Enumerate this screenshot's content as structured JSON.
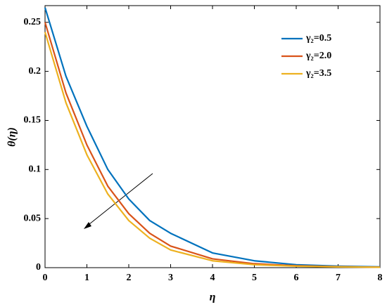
{
  "chart_data": {
    "type": "line",
    "x_label": "η",
    "y_label": "θ(η)",
    "x": [
      0,
      0.5,
      1,
      1.5,
      2,
      2.5,
      3,
      4,
      5,
      6,
      7,
      8
    ],
    "series": [
      {
        "name": "γ₂=0.5",
        "color": "#0072bd",
        "values": [
          0.265,
          0.195,
          0.144,
          0.1,
          0.07,
          0.048,
          0.035,
          0.015,
          0.007,
          0.003,
          0.0015,
          0.0008
        ]
      },
      {
        "name": "γ₂=2.0",
        "color": "#d95319",
        "values": [
          0.25,
          0.178,
          0.125,
          0.083,
          0.055,
          0.035,
          0.022,
          0.009,
          0.004,
          0.002,
          0.001,
          0.0005
        ]
      },
      {
        "name": "γ₂=3.5",
        "color": "#edb120",
        "values": [
          0.24,
          0.168,
          0.115,
          0.075,
          0.048,
          0.03,
          0.018,
          0.007,
          0.003,
          0.0015,
          0.0008,
          0.0004
        ]
      }
    ],
    "xlim": [
      0,
      8
    ],
    "xticks": [
      0,
      1,
      2,
      3,
      4,
      5,
      6,
      7,
      8
    ],
    "ylim": [
      0,
      0.267
    ],
    "yticks": [
      0,
      0.05,
      0.1,
      0.15,
      0.2,
      0.25
    ],
    "legend": "upper right"
  }
}
